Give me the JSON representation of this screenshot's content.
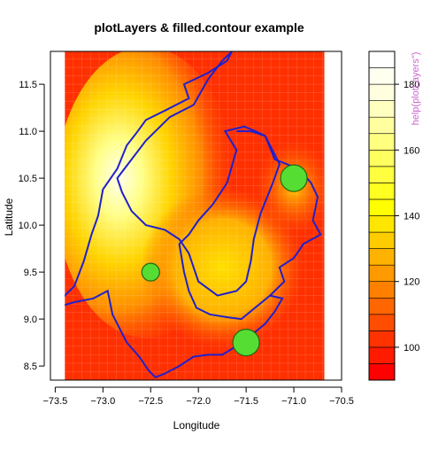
{
  "chart_data": {
    "type": "heatmap",
    "title": "plotLayers & filled.contour example",
    "xlabel": "Longitude",
    "ylabel": "Latitude",
    "xlim": [
      -73.55,
      -70.5
    ],
    "ylim": [
      8.35,
      11.85
    ],
    "data_extent": {
      "x": [
        -73.4,
        -70.68
      ],
      "y": [
        8.35,
        11.85
      ]
    },
    "x_ticks": [
      -73.5,
      -73.0,
      -72.5,
      -72.0,
      -71.5,
      -71.0,
      -70.5
    ],
    "x_tick_labels": [
      "−73.5",
      "−73.0",
      "−72.5",
      "−72.0",
      "−71.5",
      "−71.0",
      "−70.5"
    ],
    "y_ticks": [
      8.5,
      9.0,
      9.5,
      10.0,
      10.5,
      11.0,
      11.5
    ],
    "y_tick_labels": [
      "8.5",
      "9.0",
      "9.5",
      "10.0",
      "10.5",
      "11.0",
      "11.5"
    ],
    "color_key": {
      "range": [
        90,
        190
      ],
      "levels": [
        90,
        95,
        100,
        105,
        110,
        115,
        120,
        125,
        130,
        135,
        140,
        145,
        150,
        155,
        160,
        165,
        170,
        175,
        180,
        185,
        190
      ],
      "ticks": [
        100,
        120,
        140,
        160,
        180
      ],
      "tick_labels": [
        "100",
        "120",
        "140",
        "160",
        "180"
      ],
      "colors": [
        "#ff0000",
        "#ff1a00",
        "#ff3300",
        "#ff4d00",
        "#ff6600",
        "#ff8000",
        "#ff9900",
        "#ffb300",
        "#ffcc00",
        "#ffe600",
        "#ffff00",
        "#ffff20",
        "#ffff40",
        "#ffff60",
        "#ffff80",
        "#ffff9f",
        "#ffffbf",
        "#ffffdf",
        "#ffffef",
        "#ffffff"
      ]
    },
    "color_key_note": "help(plotLayers\")",
    "grid": true,
    "points": [
      {
        "x": -72.5,
        "y": 9.5,
        "size": "small"
      },
      {
        "x": -71.0,
        "y": 10.5,
        "size": "large"
      },
      {
        "x": -71.5,
        "y": 8.75,
        "size": "large"
      }
    ],
    "boundary_outline": [
      [
        -71.65,
        11.85
      ],
      [
        -71.7,
        11.75
      ],
      [
        -71.9,
        11.62
      ],
      [
        -72.15,
        11.5
      ],
      [
        -72.1,
        11.35
      ],
      [
        -72.35,
        11.22
      ],
      [
        -72.55,
        11.12
      ],
      [
        -72.65,
        10.98
      ],
      [
        -72.75,
        10.85
      ],
      [
        -72.85,
        10.6
      ],
      [
        -73.0,
        10.38
      ],
      [
        -73.05,
        10.1
      ],
      [
        -73.12,
        9.9
      ],
      [
        -73.2,
        9.62
      ],
      [
        -73.3,
        9.35
      ],
      [
        -73.45,
        9.2
      ],
      [
        -73.4,
        9.15
      ],
      [
        -73.3,
        9.18
      ],
      [
        -73.1,
        9.22
      ],
      [
        -72.95,
        9.3
      ],
      [
        -72.9,
        9.05
      ],
      [
        -72.85,
        8.95
      ],
      [
        -72.75,
        8.75
      ],
      [
        -72.62,
        8.6
      ],
      [
        -72.52,
        8.45
      ],
      [
        -72.45,
        8.38
      ],
      [
        -72.35,
        8.42
      ],
      [
        -72.2,
        8.5
      ],
      [
        -72.05,
        8.6
      ],
      [
        -71.9,
        8.62
      ],
      [
        -71.75,
        8.62
      ],
      [
        -71.62,
        8.7
      ],
      [
        -71.42,
        8.85
      ],
      [
        -71.3,
        8.95
      ],
      [
        -71.2,
        9.08
      ],
      [
        -71.12,
        9.22
      ],
      [
        -71.25,
        9.25
      ],
      [
        -71.55,
        9.0
      ],
      [
        -71.7,
        9.02
      ],
      [
        -71.88,
        9.05
      ],
      [
        -72.02,
        9.12
      ],
      [
        -72.1,
        9.3
      ],
      [
        -72.15,
        9.5
      ],
      [
        -72.2,
        9.8
      ],
      [
        -72.1,
        9.9
      ],
      [
        -72.0,
        10.05
      ],
      [
        -71.85,
        10.22
      ],
      [
        -71.7,
        10.45
      ],
      [
        -71.6,
        10.8
      ],
      [
        -71.72,
        11.0
      ],
      [
        -71.52,
        11.05
      ],
      [
        -71.4,
        11.0
      ],
      [
        -71.3,
        10.95
      ],
      [
        -71.2,
        10.75
      ],
      [
        -71.15,
        10.65
      ],
      [
        -71.22,
        10.45
      ],
      [
        -71.35,
        10.12
      ],
      [
        -71.42,
        9.85
      ],
      [
        -71.45,
        9.62
      ],
      [
        -71.5,
        9.4
      ],
      [
        -71.6,
        9.3
      ],
      [
        -71.8,
        9.25
      ],
      [
        -72.0,
        9.4
      ],
      [
        -72.1,
        9.7
      ],
      [
        -72.2,
        9.85
      ],
      [
        -72.35,
        9.95
      ],
      [
        -72.55,
        10.0
      ],
      [
        -72.7,
        10.15
      ],
      [
        -72.8,
        10.35
      ],
      [
        -72.85,
        10.5
      ],
      [
        -72.7,
        10.7
      ],
      [
        -72.55,
        10.9
      ],
      [
        -72.4,
        11.05
      ],
      [
        -72.3,
        11.15
      ],
      [
        -72.05,
        11.28
      ],
      [
        -71.9,
        11.55
      ],
      [
        -71.75,
        11.75
      ],
      [
        -71.65,
        11.85
      ]
    ],
    "region_outline_east": [
      [
        -71.6,
        11.0
      ],
      [
        -71.45,
        11.0
      ],
      [
        -71.3,
        10.95
      ],
      [
        -71.2,
        10.7
      ],
      [
        -70.95,
        10.6
      ],
      [
        -70.82,
        10.45
      ],
      [
        -70.75,
        10.3
      ],
      [
        -70.8,
        10.05
      ],
      [
        -70.72,
        9.9
      ],
      [
        -70.9,
        9.8
      ],
      [
        -71.0,
        9.65
      ],
      [
        -71.15,
        9.55
      ],
      [
        -71.1,
        9.4
      ],
      [
        -71.25,
        9.25
      ]
    ]
  }
}
